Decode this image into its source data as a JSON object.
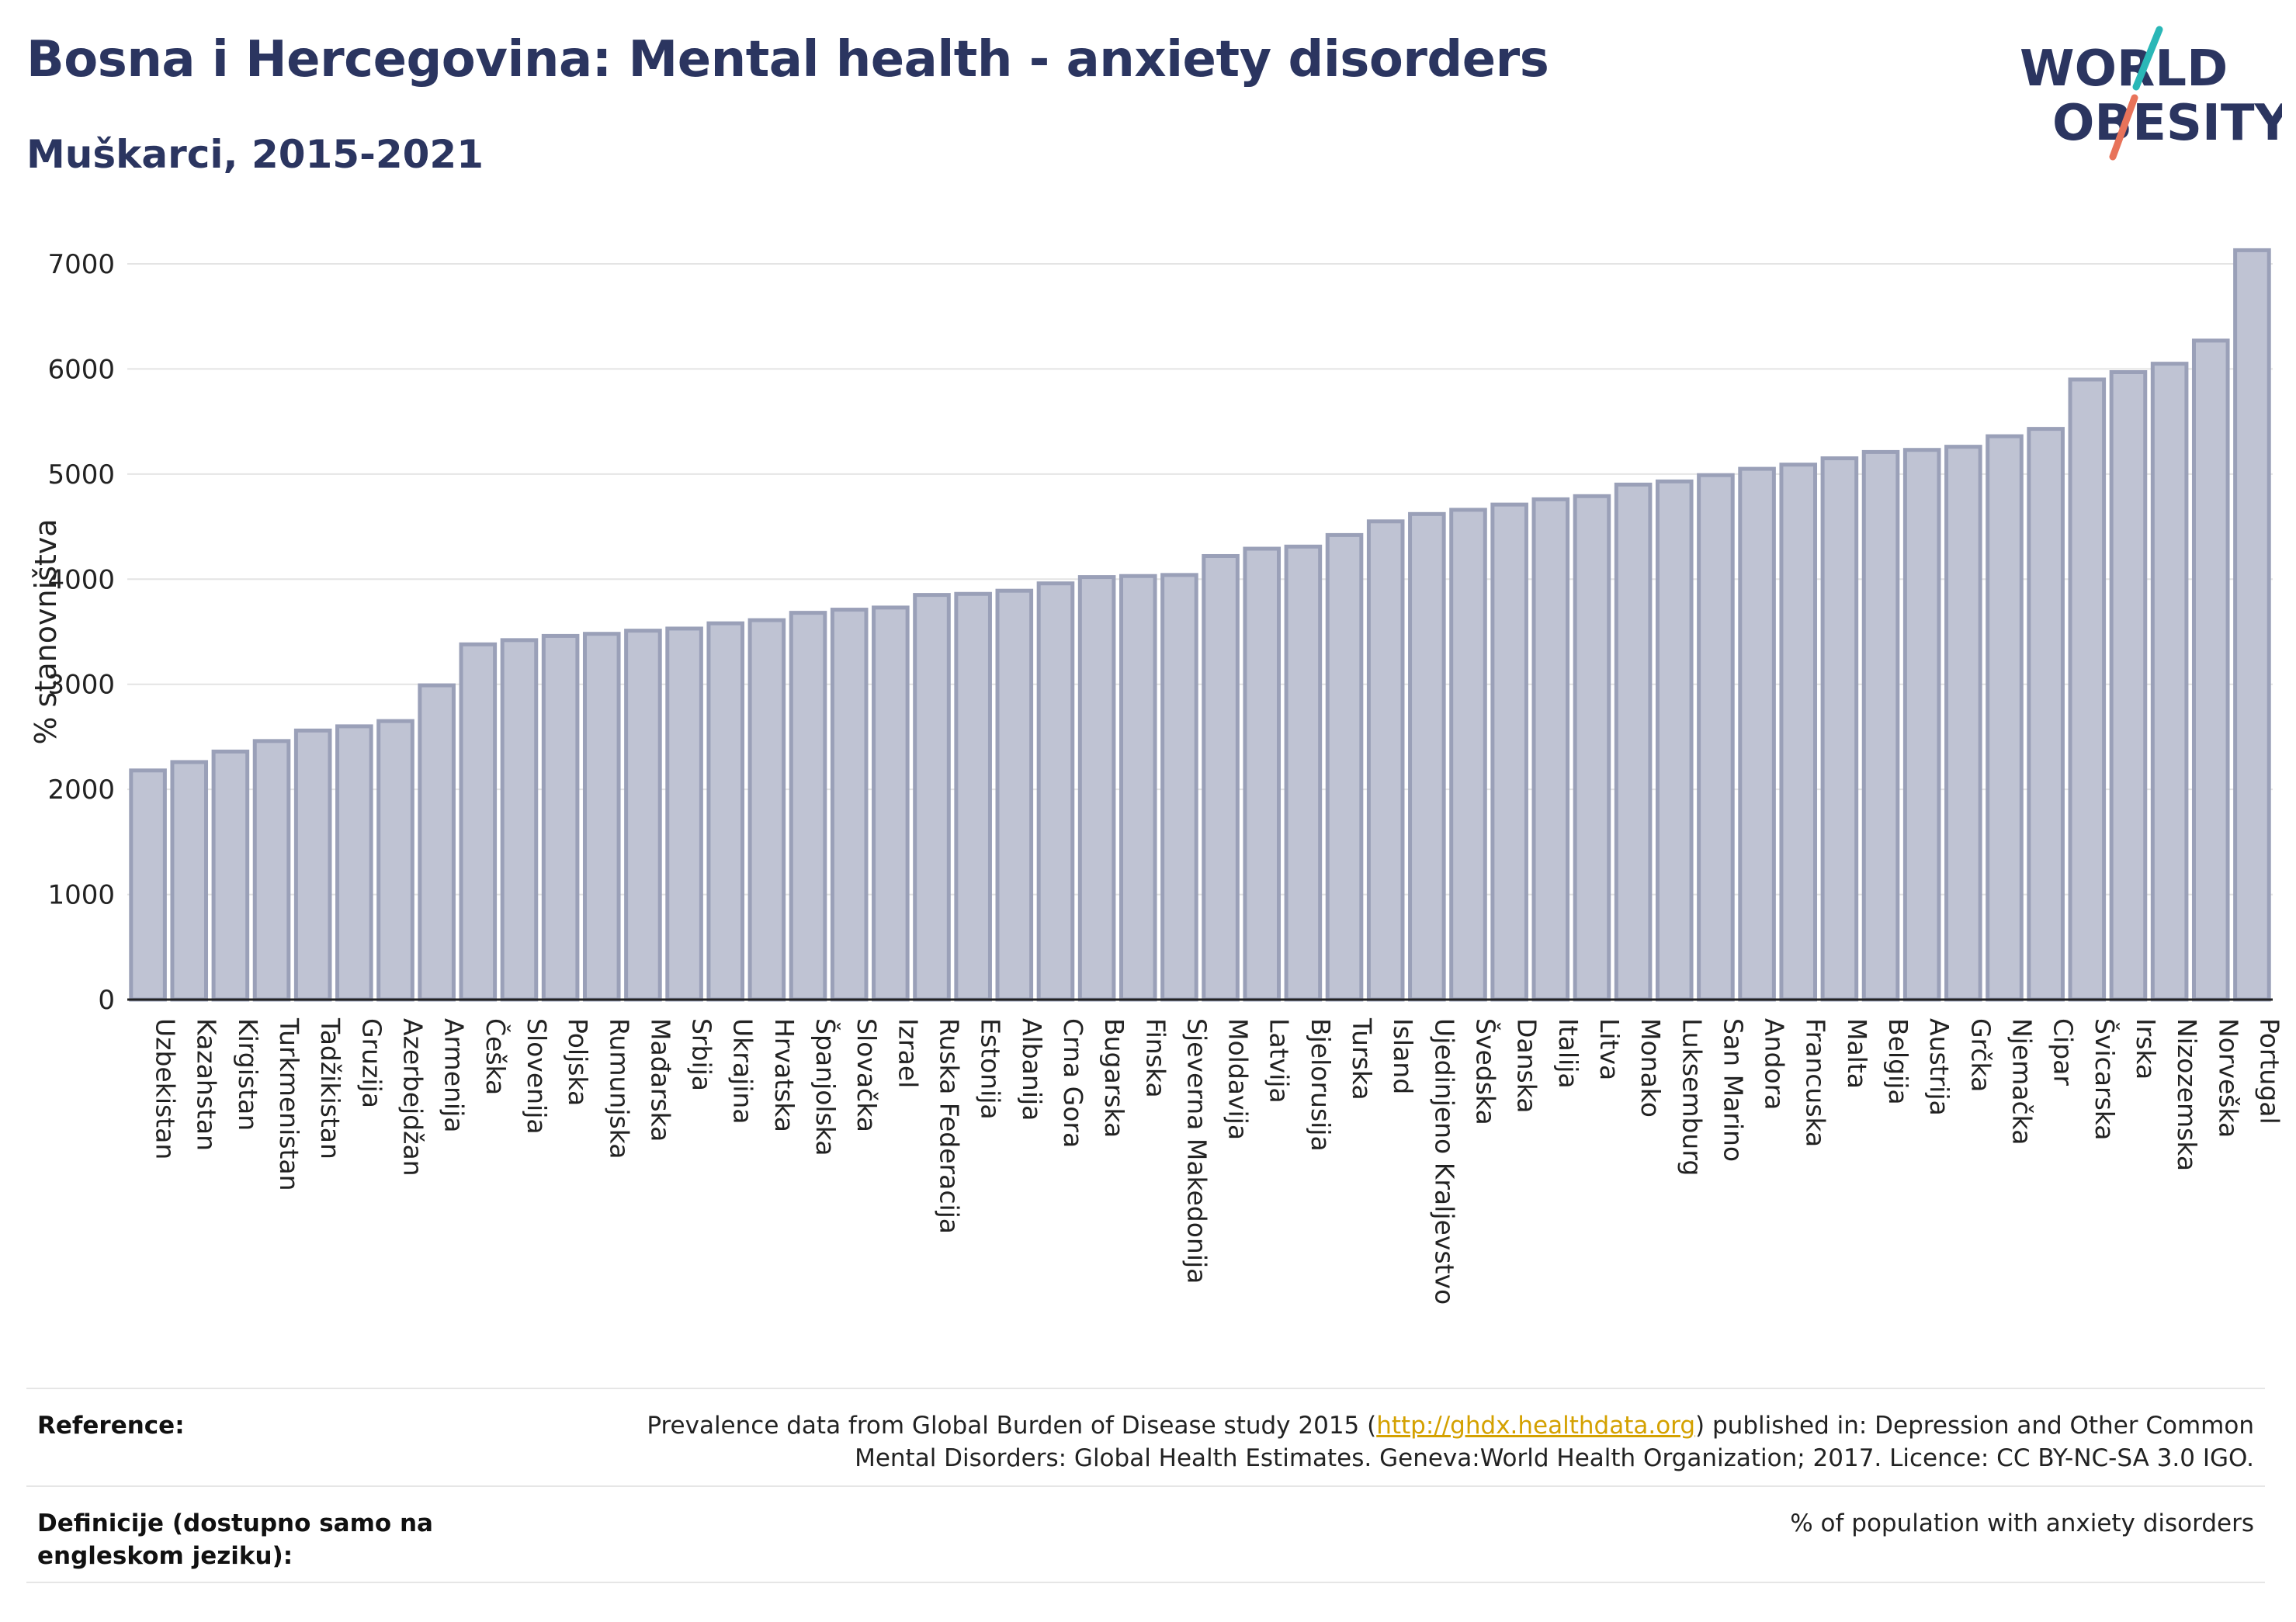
{
  "header": {
    "title": "Bosna i Hercegovina: Mental health - anxiety disorders",
    "subtitle": "Muškarci, 2015-2021"
  },
  "logo": {
    "line1": "WORLD",
    "line2": "OBESITY",
    "accent_teal": "#2ab7b7",
    "accent_coral": "#e8735a"
  },
  "chart_data": {
    "type": "bar",
    "ylabel": "% stanovništva",
    "ylim": [
      0,
      7000
    ],
    "yticks": [
      0,
      1000,
      2000,
      3000,
      4000,
      5000,
      6000,
      7000
    ],
    "grid": true,
    "bar_fill": "#bfc3d3",
    "bar_stroke": "#9aa0b8",
    "categories": [
      "Uzbekistan",
      "Kazahstan",
      "Kirgistan",
      "Turkmenistan",
      "Tadžikistan",
      "Gruzija",
      "Azerbejdžan",
      "Armenija",
      "Češka",
      "Slovenija",
      "Poljska",
      "Rumunjska",
      "Mađarska",
      "Srbija",
      "Ukrajina",
      "Hrvatska",
      "Španjolska",
      "Slovačka",
      "Izrael",
      "Ruska Federacija",
      "Estonija",
      "Albanija",
      "Crna Gora",
      "Bugarska",
      "Finska",
      "Sjeverna Makedonija",
      "Moldavija",
      "Latvija",
      "Bjelorusija",
      "Turska",
      "Island",
      "Ujedinjeno Kraljevstvo",
      "Švedska",
      "Danska",
      "Italija",
      "Litva",
      "Monako",
      "Luksemburg",
      "San Marino",
      "Andora",
      "Francuska",
      "Malta",
      "Belgija",
      "Austrija",
      "Grčka",
      "Njemačka",
      "Cipar",
      "Švicarska",
      "Irska",
      "Nizozemska",
      "Norveška",
      "Portugal"
    ],
    "values": [
      2180,
      2260,
      2360,
      2460,
      2560,
      2600,
      2650,
      2990,
      3380,
      3420,
      3460,
      3480,
      3510,
      3530,
      3580,
      3610,
      3680,
      3710,
      3730,
      3850,
      3860,
      3890,
      3960,
      4020,
      4030,
      4040,
      4220,
      4290,
      4310,
      4420,
      4550,
      4620,
      4660,
      4710,
      4760,
      4790,
      4900,
      4930,
      4990,
      5050,
      5090,
      5150,
      5210,
      5230,
      5260,
      5360,
      5430,
      5900,
      5970,
      6050,
      6270,
      7130
    ]
  },
  "footer": {
    "reference_label": "Reference:",
    "reference_prefix": "Prevalence data from Global Burden of Disease study 2015 (",
    "reference_link": "http://ghdx.healthdata.org",
    "reference_suffix_line1": ") published in: Depression and Other Common",
    "reference_line2": "Mental Disorders: Global Health Estimates. Geneva:World Health Organization; 2017. Licence: CC BY-NC-SA 3.0 IGO.",
    "definition_label": "Definicije (dostupno samo na engleskom jeziku):",
    "definition_text": "% of population with anxiety disorders"
  }
}
